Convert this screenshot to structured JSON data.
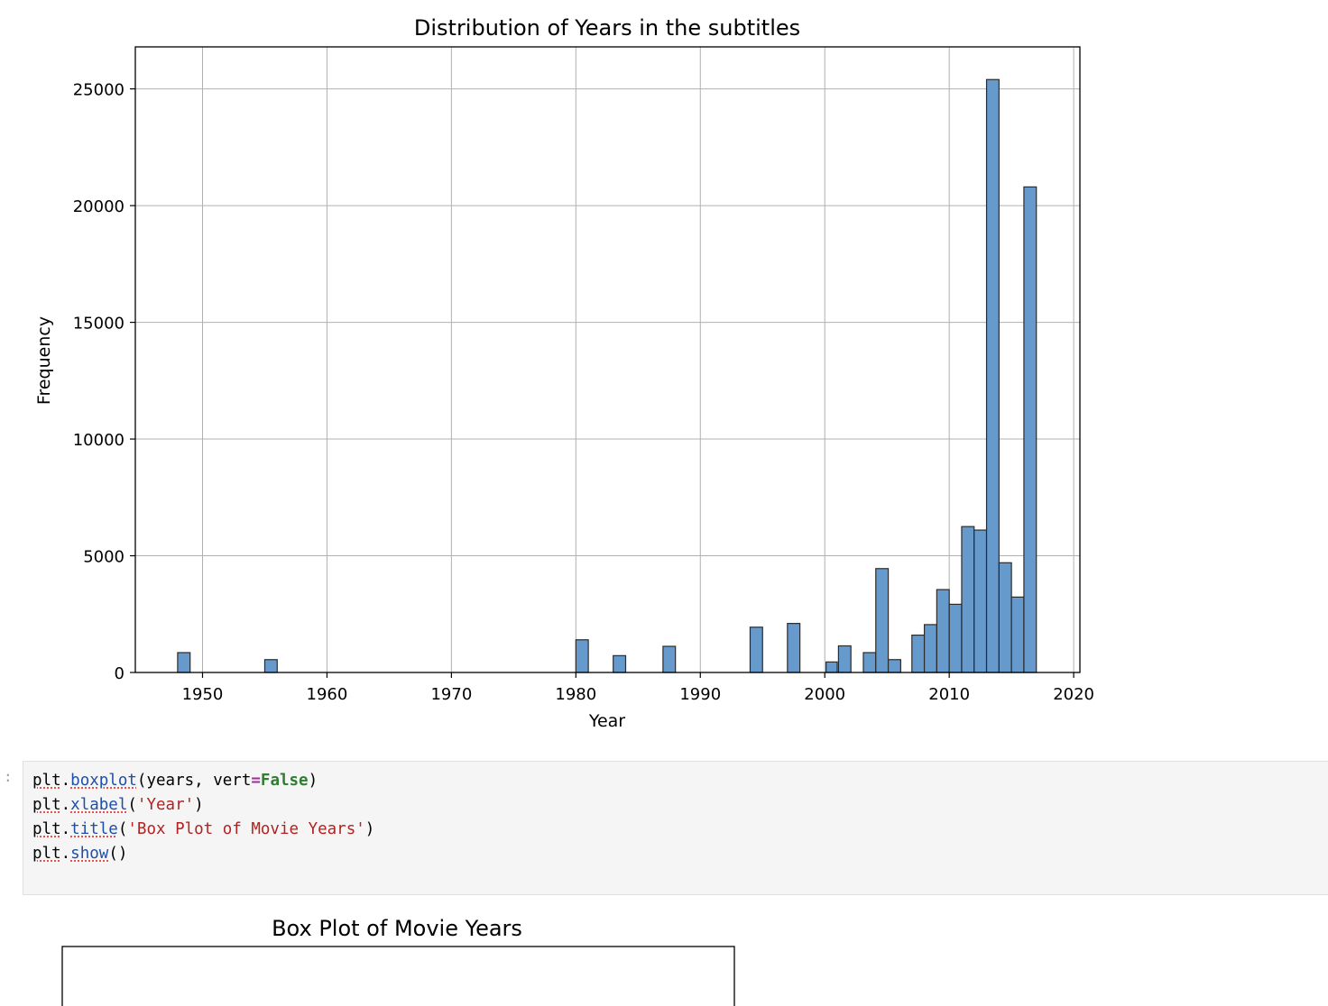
{
  "chart_data": [
    {
      "type": "bar",
      "title": "Distribution of Years in the subtitles",
      "xlabel": "Year",
      "ylabel": "Frequency",
      "xlim": [
        1944.6,
        2020.5
      ],
      "ylim": [
        0,
        26800
      ],
      "xticks": [
        1950,
        1960,
        1970,
        1980,
        1990,
        2000,
        2010,
        2020
      ],
      "yticks": [
        0,
        5000,
        10000,
        15000,
        20000,
        25000
      ],
      "grid": true,
      "bar_color": "#6699cc",
      "edge_color": "#2b2b2b",
      "bins": [
        {
          "x0": 1948.0,
          "x1": 1949.0,
          "value": 850
        },
        {
          "x0": 1955.0,
          "x1": 1956.0,
          "value": 550
        },
        {
          "x0": 1980.0,
          "x1": 1981.0,
          "value": 1400
        },
        {
          "x0": 1983.0,
          "x1": 1984.0,
          "value": 720
        },
        {
          "x0": 1987.0,
          "x1": 1988.0,
          "value": 1120
        },
        {
          "x0": 1994.0,
          "x1": 1995.0,
          "value": 1940
        },
        {
          "x0": 1997.0,
          "x1": 1998.0,
          "value": 2100
        },
        {
          "x0": 2000.1,
          "x1": 2001.0,
          "value": 450
        },
        {
          "x0": 2001.1,
          "x1": 2002.1,
          "value": 1140
        },
        {
          "x0": 2003.1,
          "x1": 2004.1,
          "value": 850
        },
        {
          "x0": 2004.1,
          "x1": 2005.1,
          "value": 4450
        },
        {
          "x0": 2005.1,
          "x1": 2006.1,
          "value": 550
        },
        {
          "x0": 2007.0,
          "x1": 2008.0,
          "value": 1600
        },
        {
          "x0": 2008.0,
          "x1": 2009.0,
          "value": 2050
        },
        {
          "x0": 2009.0,
          "x1": 2010.0,
          "value": 3550
        },
        {
          "x0": 2010.0,
          "x1": 2011.0,
          "value": 2920
        },
        {
          "x0": 2011.0,
          "x1": 2012.0,
          "value": 6250
        },
        {
          "x0": 2012.0,
          "x1": 2013.0,
          "value": 6100
        },
        {
          "x0": 2013.0,
          "x1": 2014.0,
          "value": 25400
        },
        {
          "x0": 2014.0,
          "x1": 2015.0,
          "value": 4700
        },
        {
          "x0": 2015.0,
          "x1": 2016.0,
          "value": 3230
        },
        {
          "x0": 2016.0,
          "x1": 2017.0,
          "value": 20800
        }
      ]
    },
    {
      "type": "box",
      "title": "Box Plot of Movie Years"
    }
  ],
  "code_cell": {
    "prompt": ":",
    "lines": [
      [
        {
          "t": "plt",
          "c": "tok-obj"
        },
        {
          "t": ".",
          "c": ""
        },
        {
          "t": "boxplot",
          "c": "tok-fn"
        },
        {
          "t": "(years, vert",
          "c": ""
        },
        {
          "t": "=",
          "c": "tok-op"
        },
        {
          "t": "False",
          "c": "tok-kw"
        },
        {
          "t": ")",
          "c": ""
        }
      ],
      [
        {
          "t": "plt",
          "c": "tok-obj"
        },
        {
          "t": ".",
          "c": ""
        },
        {
          "t": "xlabel",
          "c": "tok-fn"
        },
        {
          "t": "(",
          "c": ""
        },
        {
          "t": "'Year'",
          "c": "tok-str"
        },
        {
          "t": ")",
          "c": ""
        }
      ],
      [
        {
          "t": "plt",
          "c": "tok-obj"
        },
        {
          "t": ".",
          "c": ""
        },
        {
          "t": "title",
          "c": "tok-fn"
        },
        {
          "t": "(",
          "c": ""
        },
        {
          "t": "'Box Plot of Movie Years'",
          "c": "tok-str"
        },
        {
          "t": ")",
          "c": ""
        }
      ],
      [
        {
          "t": "plt",
          "c": "tok-obj"
        },
        {
          "t": ".",
          "c": ""
        },
        {
          "t": "show",
          "c": "tok-fn"
        },
        {
          "t": "()",
          "c": ""
        }
      ]
    ]
  }
}
